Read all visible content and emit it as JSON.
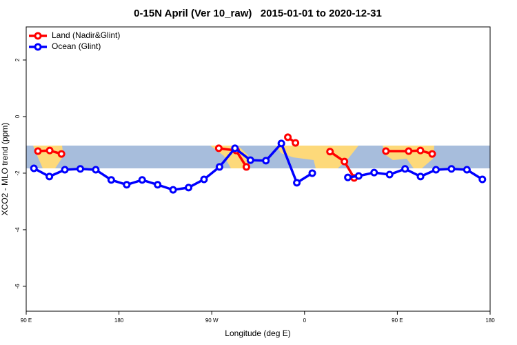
{
  "chart_data": {
    "type": "line",
    "title": "0-15N April (Ver 10_raw)   2015-01-01 to 2020-12-31",
    "x_label": "Longitude (deg E)",
    "y_label": "XCO2 - MLO trend (ppm)",
    "xlim": [
      90,
      540
    ],
    "xticks": [
      {
        "value": 90,
        "label": "90 E"
      },
      180,
      {
        "value": 270,
        "label": "90 W"
      },
      {
        "value": 360,
        "label": "0"
      },
      {
        "value": 450,
        "label": "90 E"
      },
      {
        "value": 540,
        "label": "180"
      }
    ],
    "ylim": [
      -6.88,
      3.17
    ],
    "yticks": [
      2,
      0,
      -2,
      -4,
      -6
    ],
    "legend": "top-left",
    "series": [
      {
        "name": "Land (Nadir&Glint)",
        "color": "#ff0000",
        "x": [
          101.4,
          112.8,
          124.2,
          null,
          276.8,
          293.6,
          303.6,
          null,
          343.8,
          351.2,
          null,
          384.7,
          398.7,
          408.1,
          null,
          438.9,
          461.0,
          472.4,
          483.8
        ],
        "values": [
          -1.22,
          -1.2,
          -1.32,
          null,
          -1.12,
          -1.2,
          -1.78,
          null,
          -0.73,
          -0.93,
          null,
          -1.24,
          -1.59,
          -2.17,
          null,
          -1.22,
          -1.22,
          -1.2,
          -1.32
        ]
      },
      {
        "name": "Ocean (Glint)",
        "color": "#0000ff",
        "x": [
          97.5,
          112.5,
          127.5,
          142.5,
          157.5,
          172.5,
          187.5,
          202.5,
          217.5,
          232.5,
          247.5,
          262.5,
          277.5,
          292.5,
          307.5,
          322.5,
          337.5,
          352.5,
          367.5,
          null,
          402.0,
          412.5,
          427.5,
          442.5,
          457.5,
          472.5,
          487.5,
          502.5,
          517.5,
          532.5
        ],
        "values": [
          -1.83,
          -2.12,
          -1.88,
          -1.85,
          -1.88,
          -2.24,
          -2.41,
          -2.24,
          -2.41,
          -2.59,
          -2.51,
          -2.22,
          -1.78,
          -1.12,
          -1.54,
          -1.56,
          -0.95,
          -2.34,
          -2.0,
          null,
          -2.15,
          -2.1,
          -1.98,
          -2.05,
          -1.85,
          -2.12,
          -1.88,
          -1.85,
          -1.88,
          -2.22
        ]
      }
    ]
  }
}
